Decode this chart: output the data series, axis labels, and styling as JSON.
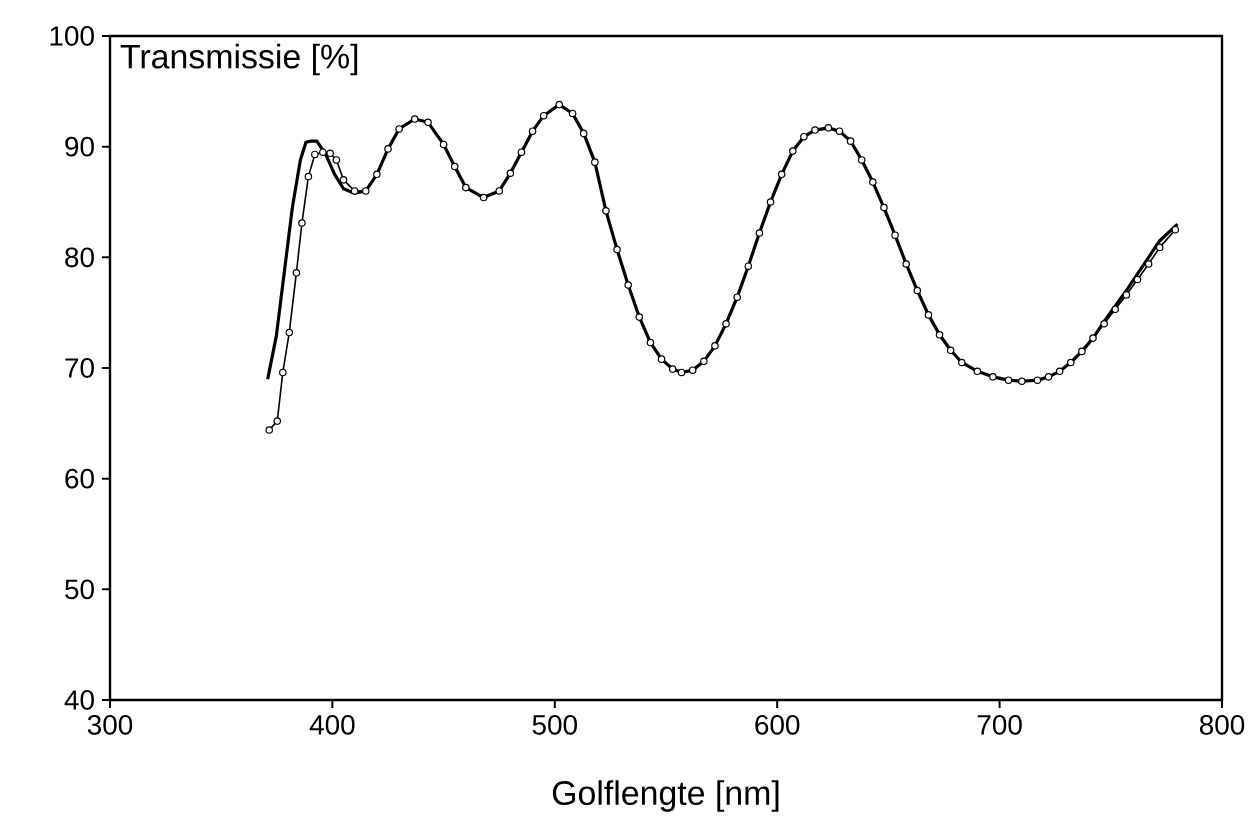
{
  "chart_data": {
    "type": "line",
    "xlabel": "Golflengte [nm]",
    "ylabel": "Transmissie [%]",
    "xlim": [
      300,
      800
    ],
    "ylim": [
      40,
      100
    ],
    "xticks": [
      300,
      400,
      500,
      600,
      700,
      800
    ],
    "yticks": [
      40,
      50,
      60,
      70,
      80,
      90,
      100
    ],
    "series": [
      {
        "color": "#000000",
        "marker": "circle",
        "x": [
          371.6,
          375.2,
          377.7,
          380.6,
          383.8,
          386.3,
          389.2,
          392.1,
          395.7,
          399,
          401.8,
          405,
          410,
          415,
          420,
          425,
          430,
          437,
          443,
          450,
          455,
          460,
          468,
          475,
          480,
          485,
          490,
          495,
          502,
          508,
          513,
          518,
          523,
          528,
          533,
          538,
          543,
          548,
          553,
          557,
          562,
          567,
          572,
          577,
          582,
          587,
          592,
          597,
          602,
          607,
          612,
          617,
          623,
          628,
          633,
          638,
          643,
          648,
          653,
          658,
          663,
          668,
          673,
          678,
          683,
          690,
          697,
          704,
          710,
          717,
          722,
          727,
          732,
          737,
          742,
          747,
          752,
          757,
          762,
          767,
          772,
          779
        ],
        "values": [
          64.4,
          65.2,
          69.6,
          73.2,
          78.6,
          83.1,
          87.3,
          89.3,
          89.5,
          89.4,
          88.8,
          87,
          86,
          86,
          87.5,
          89.8,
          91.6,
          92.5,
          92.2,
          90.2,
          88.2,
          86.3,
          85.4,
          86,
          87.6,
          89.5,
          91.4,
          92.8,
          93.8,
          93,
          91.2,
          88.6,
          84.2,
          80.7,
          77.5,
          74.6,
          72.3,
          70.8,
          69.9,
          69.6,
          69.8,
          70.6,
          72,
          74,
          76.4,
          79.2,
          82.2,
          85,
          87.5,
          89.6,
          90.9,
          91.5,
          91.7,
          91.4,
          90.5,
          88.8,
          86.8,
          84.5,
          82,
          79.4,
          77,
          74.8,
          73,
          71.6,
          70.5,
          69.7,
          69.2,
          68.9,
          68.8,
          68.9,
          69.2,
          69.7,
          70.5,
          71.5,
          72.7,
          74,
          75.3,
          76.6,
          78,
          79.4,
          80.9,
          82.5
        ]
      },
      {
        "color": "#000000",
        "marker": "none",
        "x": [
          370.9,
          374.8,
          378.4,
          382,
          385.6,
          388.1,
          390.3,
          393,
          397,
          401,
          405,
          410,
          415,
          420,
          425,
          430,
          437,
          443,
          450,
          455,
          460,
          468,
          475,
          480,
          485,
          490,
          495,
          502,
          508,
          513,
          518,
          523,
          528,
          533,
          538,
          543,
          548,
          553,
          557,
          562,
          567,
          572,
          577,
          582,
          587,
          592,
          597,
          602,
          607,
          612,
          617,
          623,
          628,
          633,
          638,
          643,
          648,
          653,
          658,
          663,
          668,
          673,
          678,
          683,
          690,
          697,
          704,
          710,
          717,
          722,
          727,
          732,
          737,
          742,
          747,
          752,
          757,
          762,
          767,
          772,
          780
        ],
        "values": [
          69,
          72.9,
          78.7,
          84.5,
          88.8,
          90.4,
          90.5,
          90.5,
          89.3,
          87.5,
          86.2,
          85.8,
          86,
          87.5,
          89.8,
          91.6,
          92.5,
          92.2,
          90.2,
          88.2,
          86.3,
          85.4,
          86,
          87.6,
          89.5,
          91.4,
          92.8,
          93.8,
          93,
          91.2,
          88.6,
          84.2,
          80.7,
          77.5,
          74.6,
          72.3,
          70.8,
          69.9,
          69.6,
          69.8,
          70.6,
          72,
          74,
          76.4,
          79.2,
          82.2,
          85,
          87.5,
          89.6,
          90.9,
          91.5,
          91.7,
          91.4,
          90.5,
          88.8,
          86.8,
          84.5,
          82,
          79.4,
          77,
          74.8,
          73,
          71.6,
          70.5,
          69.7,
          69.2,
          68.9,
          68.8,
          68.9,
          69.2,
          69.7,
          70.5,
          71.5,
          72.7,
          74.2,
          75.6,
          77,
          78.5,
          80,
          81.5,
          83
        ]
      }
    ]
  }
}
